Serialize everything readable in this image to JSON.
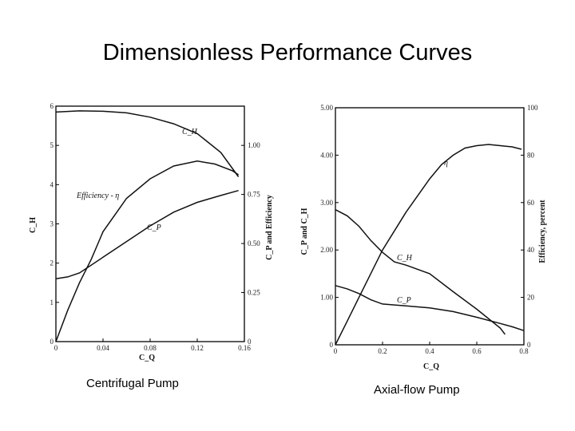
{
  "title": "Dimensionless Performance Curves",
  "captions": {
    "left": "Centrifugal Pump",
    "right": "Axial-flow Pump"
  },
  "chart_data": [
    {
      "type": "line",
      "name": "Centrifugal Pump",
      "xlabel": "C_Q",
      "ylabel_left": "C_H",
      "ylabel_right": "C_P and Efficiency",
      "xlim": [
        0,
        0.16
      ],
      "ylim_left": [
        0,
        6
      ],
      "ylim_right": [
        0,
        1.2
      ],
      "x_ticks": [
        "0",
        "0.04",
        "0.08",
        "0.12",
        "0.16"
      ],
      "y_ticks_left": [
        "0",
        "1",
        "2",
        "3",
        "4",
        "5",
        "6"
      ],
      "y_ticks_right": [
        "0",
        "0.25",
        "0.50",
        "0.75",
        "1.00"
      ],
      "series": [
        {
          "name": "C_H",
          "label": "C_H",
          "axis": "left",
          "x": [
            0,
            0.02,
            0.04,
            0.06,
            0.08,
            0.1,
            0.12,
            0.14,
            0.155
          ],
          "y": [
            5.85,
            5.88,
            5.87,
            5.83,
            5.72,
            5.55,
            5.3,
            4.82,
            4.2
          ]
        },
        {
          "name": "Efficiency",
          "label": "Efficiency - η",
          "axis": "right",
          "x": [
            0,
            0.01,
            0.02,
            0.03,
            0.04,
            0.06,
            0.08,
            0.1,
            0.12,
            0.135,
            0.15,
            0.155
          ],
          "y": [
            0,
            0.16,
            0.3,
            0.42,
            0.56,
            0.73,
            0.83,
            0.895,
            0.92,
            0.905,
            0.87,
            0.85
          ]
        },
        {
          "name": "C_P",
          "label": "C_P",
          "axis": "right",
          "x": [
            0,
            0.01,
            0.02,
            0.04,
            0.06,
            0.08,
            0.1,
            0.12,
            0.14,
            0.155
          ],
          "y": [
            0.32,
            0.33,
            0.35,
            0.43,
            0.51,
            0.59,
            0.66,
            0.71,
            0.745,
            0.77
          ]
        }
      ]
    },
    {
      "type": "line",
      "name": "Axial-flow Pump",
      "xlabel": "C_Q",
      "ylabel_left": "C_P and C_H",
      "ylabel_right": "Efficiency, percent",
      "xlim": [
        0,
        0.8
      ],
      "ylim_left": [
        0,
        5
      ],
      "ylim_right": [
        0,
        100
      ],
      "x_ticks": [
        "0",
        "0.2",
        "0.4",
        "0.6",
        "0.8"
      ],
      "y_ticks_left": [
        "0",
        "1.00",
        "2.00",
        "3.00",
        "4.00",
        "5.00"
      ],
      "y_ticks_right": [
        "0",
        "20",
        "40",
        "60",
        "80",
        "100"
      ],
      "series": [
        {
          "name": "C_H",
          "label": "C_H",
          "axis": "left",
          "x": [
            0,
            0.05,
            0.1,
            0.15,
            0.2,
            0.25,
            0.3,
            0.4,
            0.5,
            0.6,
            0.7,
            0.72
          ],
          "y": [
            2.85,
            2.72,
            2.5,
            2.2,
            1.95,
            1.75,
            1.68,
            1.5,
            1.12,
            0.75,
            0.35,
            0.22
          ]
        },
        {
          "name": "Efficiency",
          "label": "η",
          "axis": "right",
          "x": [
            0,
            0.05,
            0.1,
            0.2,
            0.3,
            0.4,
            0.45,
            0.5,
            0.55,
            0.6,
            0.65,
            0.7,
            0.75,
            0.79
          ],
          "y": [
            0,
            10,
            20,
            40,
            56,
            70,
            76,
            80,
            83,
            84,
            84.5,
            84,
            83.5,
            82.5
          ]
        },
        {
          "name": "C_P",
          "label": "C_P",
          "axis": "left",
          "x": [
            0,
            0.05,
            0.1,
            0.15,
            0.2,
            0.3,
            0.4,
            0.5,
            0.6,
            0.7,
            0.75,
            0.8
          ],
          "y": [
            1.25,
            1.18,
            1.08,
            0.95,
            0.86,
            0.82,
            0.78,
            0.7,
            0.58,
            0.45,
            0.38,
            0.3
          ]
        }
      ]
    }
  ]
}
